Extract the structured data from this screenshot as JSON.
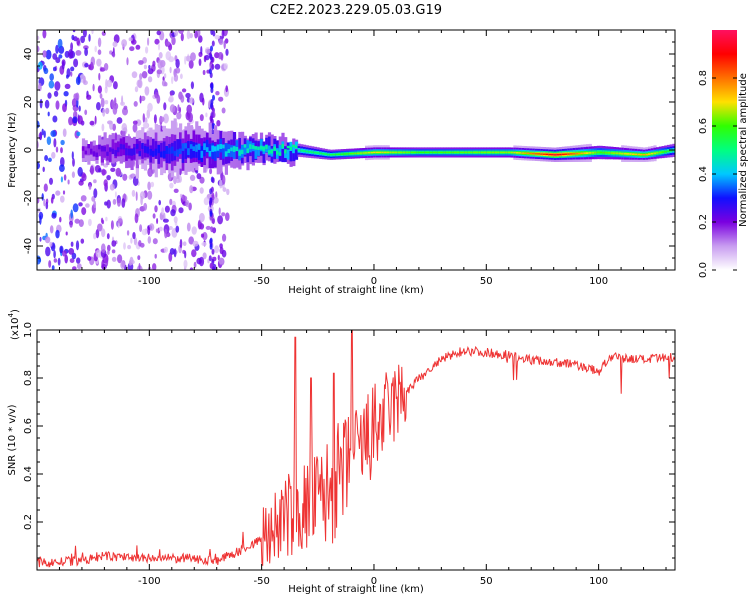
{
  "title": "C2E2.2023.229.05.03.G19",
  "colors": {
    "snr_line": "#ee3333",
    "frame": "#000000"
  },
  "chart_data": [
    {
      "type": "heatmap",
      "xlabel": "Height of straight line (km)",
      "ylabel": "Frequency (Hz)",
      "xlim": [
        -150,
        134
      ],
      "ylim": [
        -50,
        50
      ],
      "xticks": [
        -100,
        -50,
        0,
        50,
        100
      ],
      "xtick_labels": [
        "-100",
        "-50",
        "0",
        "50",
        "100"
      ],
      "yticks": [
        -40,
        -20,
        0,
        20,
        40
      ],
      "ytick_labels": [
        "-40",
        "-20",
        "0",
        "20",
        "40"
      ],
      "grid": false,
      "colorbar": {
        "label": "Normalized spectral amplitude",
        "range": [
          0,
          1
        ],
        "ticks": [
          0.0,
          0.2,
          0.4,
          0.6,
          0.8
        ],
        "tick_labels": [
          "0.0",
          "0.2",
          "0.4",
          "0.6",
          "0.8"
        ],
        "colormap": [
          "#ffffff",
          "#c89cf0",
          "#7a00e0",
          "#1010ff",
          "#00c8ff",
          "#00ff80",
          "#30ff00",
          "#ffe000",
          "#ff7000",
          "#ff0000",
          "#ff1060"
        ]
      },
      "ridge": {
        "description_points": [
          {
            "x": -130,
            "center_hz": 0,
            "halfwidth_hz": 6,
            "amplitude": 0.2
          },
          {
            "x": -95,
            "center_hz": 0,
            "halfwidth_hz": 9,
            "amplitude": 0.3
          },
          {
            "x": -60,
            "center_hz": 0,
            "halfwidth_hz": 6,
            "amplitude": 0.45
          },
          {
            "x": -35,
            "center_hz": 0,
            "halfwidth_hz": 4,
            "amplitude": 0.5
          },
          {
            "x": -20,
            "center_hz": -2,
            "halfwidth_hz": 3,
            "amplitude": 0.55
          },
          {
            "x": 0,
            "center_hz": -1,
            "halfwidth_hz": 3,
            "amplitude": 0.7
          },
          {
            "x": 20,
            "center_hz": -1,
            "halfwidth_hz": 3,
            "amplitude": 0.6
          },
          {
            "x": 60,
            "center_hz": -1,
            "halfwidth_hz": 3,
            "amplitude": 0.65
          },
          {
            "x": 80,
            "center_hz": -2,
            "halfwidth_hz": 3,
            "amplitude": 0.95
          },
          {
            "x": 100,
            "center_hz": -1,
            "halfwidth_hz": 4,
            "amplitude": 0.6
          },
          {
            "x": 120,
            "center_hz": -2,
            "halfwidth_hz": 3,
            "amplitude": 0.75
          },
          {
            "x": 134,
            "center_hz": 0,
            "halfwidth_hz": 4,
            "amplitude": 0.5
          }
        ]
      }
    },
    {
      "type": "line",
      "xlabel": "Height of straight line (km)",
      "ylabel": "SNR (10 * v/v)",
      "y_multiplier_label": "(x10",
      "y_multiplier_exponent": "4",
      "y_multiplier_close": ")",
      "xlim": [
        -150,
        134
      ],
      "ylim": [
        0,
        1.0
      ],
      "xticks": [
        -100,
        -50,
        0,
        50,
        100
      ],
      "xtick_labels": [
        "-100",
        "-50",
        "0",
        "50",
        "100"
      ],
      "yticks": [
        0.2,
        0.4,
        0.6,
        0.8,
        1.0
      ],
      "ytick_labels": [
        "0.2",
        "0.4",
        "0.6",
        "0.8",
        "1.0"
      ],
      "grid": false,
      "series": [
        {
          "color": "#ee3333",
          "envelope": [
            {
              "x": -150,
              "y": 0.02
            },
            {
              "x": -130,
              "y": 0.03
            },
            {
              "x": -120,
              "y": 0.05
            },
            {
              "x": -100,
              "y": 0.04
            },
            {
              "x": -80,
              "y": 0.04
            },
            {
              "x": -70,
              "y": 0.03
            },
            {
              "x": -60,
              "y": 0.07
            },
            {
              "x": -50,
              "y": 0.12
            },
            {
              "x": -40,
              "y": 0.22
            },
            {
              "x": -30,
              "y": 0.26
            },
            {
              "x": -20,
              "y": 0.32
            },
            {
              "x": -10,
              "y": 0.44
            },
            {
              "x": 0,
              "y": 0.58
            },
            {
              "x": 10,
              "y": 0.7
            },
            {
              "x": 20,
              "y": 0.8
            },
            {
              "x": 30,
              "y": 0.88
            },
            {
              "x": 40,
              "y": 0.92
            },
            {
              "x": 50,
              "y": 0.91
            },
            {
              "x": 60,
              "y": 0.9
            },
            {
              "x": 70,
              "y": 0.88
            },
            {
              "x": 80,
              "y": 0.87
            },
            {
              "x": 90,
              "y": 0.86
            },
            {
              "x": 100,
              "y": 0.83
            },
            {
              "x": 105,
              "y": 0.89
            },
            {
              "x": 120,
              "y": 0.88
            },
            {
              "x": 134,
              "y": 0.89
            }
          ],
          "peaks": [
            {
              "x": -35,
              "y": 0.97
            },
            {
              "x": -10,
              "y": 1.0
            },
            {
              "x": -28,
              "y": 0.8
            },
            {
              "x": -18,
              "y": 0.82
            }
          ]
        }
      ]
    }
  ]
}
